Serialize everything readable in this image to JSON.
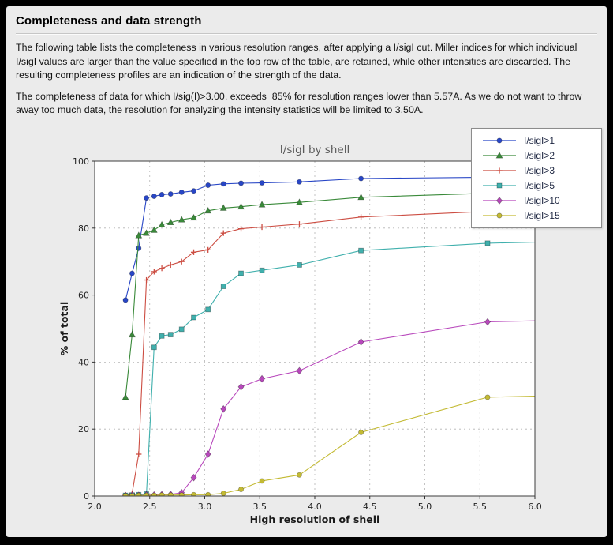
{
  "page": {
    "title": "Completeness and data strength",
    "paragraph1": "The following table lists the completeness in various resolution ranges, after applying a I/sigI cut. Miller indices for which individual I/sigI values are larger than the value specified in the top row of the table, are retained, while other intensities are discarded. The resulting completeness profiles are an indication of the strength of the data.",
    "paragraph2": "The completeness of data for which I/sig(I)>3.00, exceeds  85% for resolution ranges lower than 5.57A. As we do not want to throw away too much data, the resolution for analyzing the intensity statistics will be limited to 3.50A."
  },
  "chart_data": {
    "type": "line",
    "title": "I/sigI by shell",
    "xlabel": "High resolution of shell",
    "ylabel": "% of total",
    "xlim": [
      2.0,
      6.0
    ],
    "ylim": [
      0,
      100
    ],
    "xticks": [
      2.0,
      2.5,
      3.0,
      3.5,
      4.0,
      4.5,
      5.0,
      5.5,
      6.0
    ],
    "yticks": [
      0,
      20,
      40,
      60,
      80,
      100
    ],
    "grid": "dashed",
    "legend_position": "upper right",
    "plot_bg": "#ffffff",
    "outer_bg": "#ebebeb",
    "x": [
      2.28,
      2.34,
      2.4,
      2.47,
      2.54,
      2.61,
      2.69,
      2.79,
      2.9,
      3.03,
      3.17,
      3.33,
      3.52,
      3.86,
      4.42,
      5.57,
      6.0
    ],
    "series": [
      {
        "name": "I/sigI>1",
        "color": "#2846c6",
        "marker": "circle",
        "values": [
          58.5,
          66.5,
          74.0,
          89.0,
          89.5,
          90.0,
          90.2,
          90.7,
          91.1,
          92.8,
          93.2,
          93.4,
          93.5,
          93.8,
          94.8,
          95.2,
          95.4
        ]
      },
      {
        "name": "I/sigI>2",
        "color": "#3a8a3a",
        "marker": "triangle",
        "values": [
          29.5,
          48.2,
          77.8,
          78.5,
          79.4,
          81.0,
          81.7,
          82.5,
          83.1,
          85.2,
          86.0,
          86.4,
          87.0,
          87.7,
          89.2,
          90.4,
          90.8
        ]
      },
      {
        "name": "I/sigI>3",
        "color": "#cc4d42",
        "marker": "plus",
        "values": [
          0.3,
          0.8,
          12.5,
          64.5,
          67.0,
          68.0,
          69.0,
          70.0,
          72.8,
          73.5,
          78.5,
          79.8,
          80.3,
          81.2,
          83.3,
          85.0,
          85.4
        ]
      },
      {
        "name": "I/sigI>5",
        "color": "#40b0ad",
        "marker": "square",
        "values": [
          0.2,
          0.3,
          0.4,
          0.6,
          44.4,
          47.8,
          48.2,
          49.8,
          53.3,
          55.7,
          62.6,
          66.5,
          67.4,
          69.0,
          73.3,
          75.5,
          75.8
        ]
      },
      {
        "name": "I/sigI>10",
        "color": "#b848bc",
        "marker": "diamond",
        "values": [
          0.1,
          0.2,
          0.2,
          0.3,
          0.3,
          0.4,
          0.5,
          1.0,
          5.5,
          12.5,
          26.0,
          32.6,
          35.0,
          37.4,
          46.0,
          52.0,
          52.3
        ]
      },
      {
        "name": "I/sigI>15",
        "color": "#c3ba33",
        "marker": "circle",
        "values": [
          0.1,
          0.1,
          0.2,
          0.2,
          0.2,
          0.3,
          0.3,
          0.3,
          0.4,
          0.4,
          0.8,
          2.0,
          4.5,
          6.3,
          19.0,
          29.5,
          29.8
        ]
      }
    ]
  }
}
